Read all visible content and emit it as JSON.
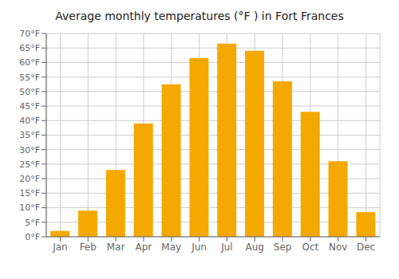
{
  "chart_data": {
    "type": "bar",
    "title": "Average monthly temperatures (°F ) in Fort Frances",
    "categories": [
      "Jan",
      "Feb",
      "Mar",
      "Apr",
      "May",
      "Jun",
      "Jul",
      "Aug",
      "Sep",
      "Oct",
      "Nov",
      "Dec"
    ],
    "values": [
      2,
      9,
      23,
      39,
      52.5,
      61.5,
      66.5,
      64,
      53.5,
      43,
      26,
      8.5
    ],
    "color": "#F5A800",
    "ylim": [
      0,
      70
    ],
    "yticks": [
      {
        "value": 0,
        "label": "0°F"
      },
      {
        "value": 5,
        "label": "5°F"
      },
      {
        "value": 10,
        "label": "10°F"
      },
      {
        "value": 15,
        "label": "15°F"
      },
      {
        "value": 20,
        "label": "20°F"
      },
      {
        "value": 25,
        "label": "25°F"
      },
      {
        "value": 30,
        "label": "30°F"
      },
      {
        "value": 35,
        "label": "35°F"
      },
      {
        "value": 40,
        "label": "40°F"
      },
      {
        "value": 45,
        "label": "45°F"
      },
      {
        "value": 50,
        "label": "50°F"
      },
      {
        "value": 55,
        "label": "55°F"
      },
      {
        "value": 60,
        "label": "60°F"
      },
      {
        "value": 65,
        "label": "65°F"
      },
      {
        "value": 70,
        "label": "70°F"
      }
    ],
    "grid": true
  }
}
